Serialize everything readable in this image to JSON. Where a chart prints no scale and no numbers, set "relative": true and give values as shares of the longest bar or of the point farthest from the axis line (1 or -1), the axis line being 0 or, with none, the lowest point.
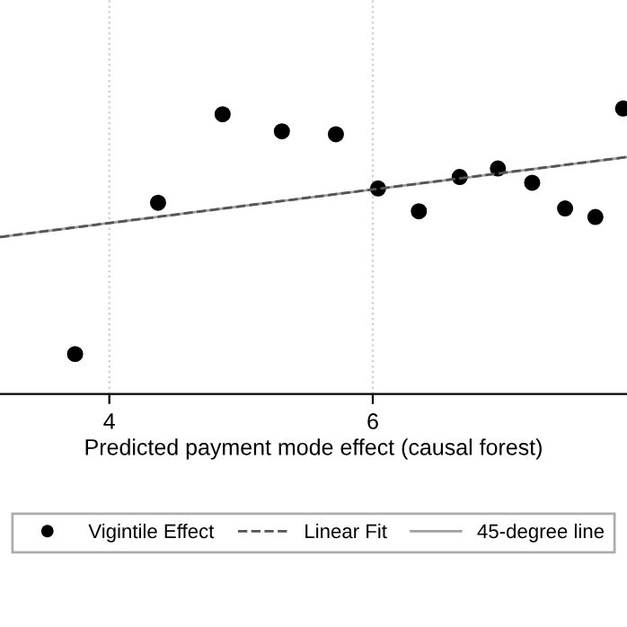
{
  "chart_data": {
    "type": "scatter",
    "xlabel": "Predicted payment mode effect (causal forest)",
    "relative": true,
    "xlim": [
      3.17,
      7.93
    ],
    "xticks": [
      4,
      6
    ],
    "grid": "x",
    "legend": "bottom",
    "tick_labels": "x",
    "series": [
      {
        "name": "Vigintile Effect",
        "marker": "circle",
        "color": "#000000",
        "x": [
          3.74,
          4.37,
          4.86,
          5.31,
          5.72,
          6.04,
          6.35,
          6.66,
          6.95,
          7.21,
          7.46,
          7.69,
          7.9
        ],
        "values": [
          0.14,
          0.67,
          0.98,
          0.92,
          0.91,
          0.72,
          0.64,
          0.76,
          0.79,
          0.74,
          0.65,
          0.62,
          1.0
        ]
      },
      {
        "name": "Linear Fit",
        "type": "line",
        "line_style": "dashed",
        "color": "#555555",
        "x": [
          3.17,
          7.93
        ],
        "values": [
          0.55,
          0.83
        ]
      },
      {
        "name": "45-degree line",
        "type": "line",
        "line_style": "solid",
        "color": "#a0a0a0",
        "x": [
          3.17,
          7.93
        ],
        "values": [
          0.55,
          0.83
        ]
      }
    ]
  }
}
